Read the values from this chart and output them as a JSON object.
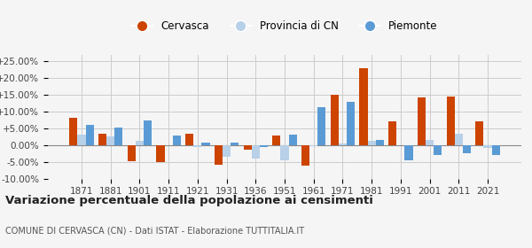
{
  "years": [
    1871,
    1881,
    1901,
    1911,
    1921,
    1931,
    1936,
    1951,
    1961,
    1971,
    1981,
    1991,
    2001,
    2011,
    2021
  ],
  "cervasca": [
    8.0,
    3.5,
    -4.7,
    -5.2,
    3.3,
    -5.9,
    -1.5,
    2.8,
    -6.2,
    15.0,
    22.8,
    7.0,
    14.2,
    14.5,
    7.0
  ],
  "provincia_cn": [
    3.0,
    2.7,
    1.2,
    0.0,
    -0.5,
    -3.5,
    -4.0,
    -4.5,
    -0.3,
    0.5,
    1.2,
    0.0,
    1.5,
    3.5,
    -0.8
  ],
  "piemonte": [
    6.0,
    5.3,
    7.3,
    2.9,
    0.8,
    0.7,
    -0.5,
    3.0,
    11.2,
    13.0,
    1.5,
    -4.5,
    -3.0,
    -2.5,
    -3.0
  ],
  "cervasca_color": "#cc4400",
  "provincia_color": "#b8d0e8",
  "piemonte_color": "#5b9bd5",
  "title": "Variazione percentuale della popolazione ai censimenti",
  "subtitle": "COMUNE DI CERVASCA (CN) - Dati ISTAT - Elaborazione TUTTITALIA.IT",
  "legend_labels": [
    "Cervasca",
    "Provincia di CN",
    "Piemonte"
  ],
  "ylim": [
    -10,
    27
  ],
  "yticks": [
    -10,
    -5,
    0,
    5,
    10,
    15,
    20,
    25
  ],
  "ytick_labels": [
    "-10.00%",
    "-5.00%",
    "0.00%",
    "+5.00%",
    "+10.00%",
    "+15.00%",
    "+20.00%",
    "+25.00%"
  ],
  "bg_color": "#f5f5f5",
  "grid_color": "#cccccc"
}
